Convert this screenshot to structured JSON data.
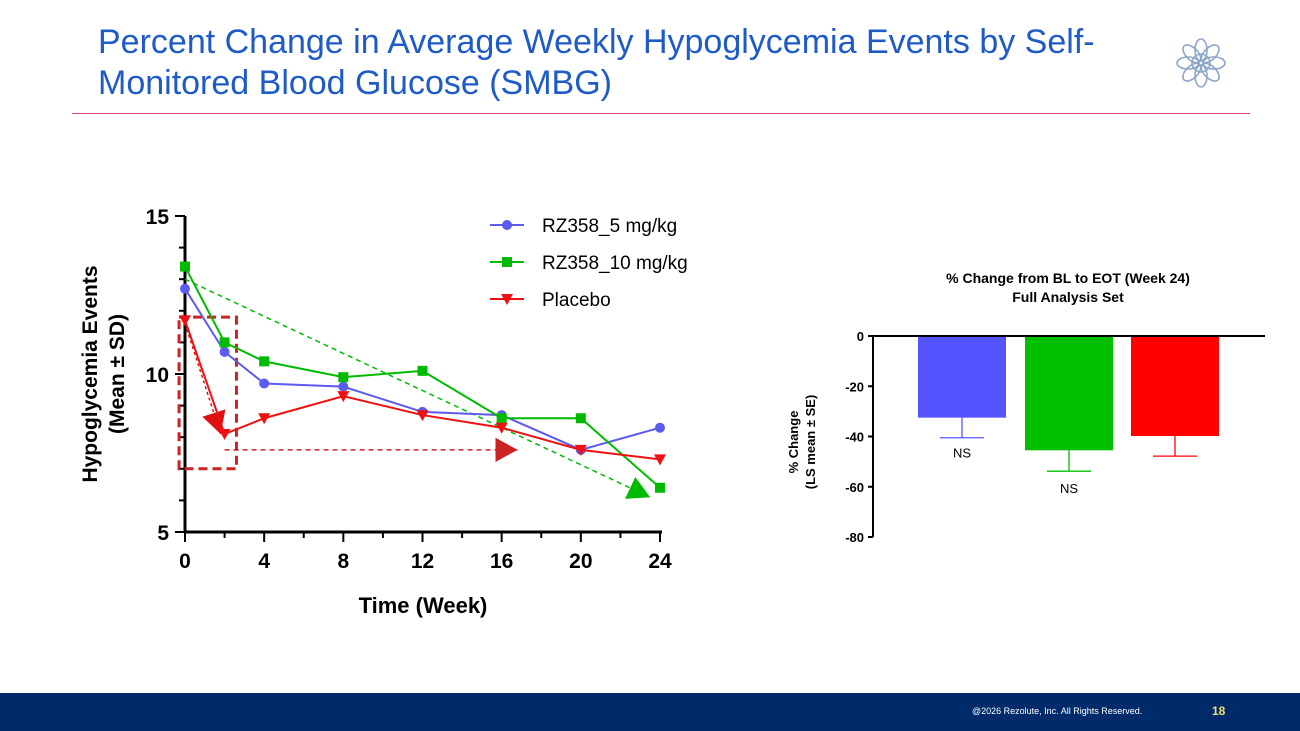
{
  "slide": {
    "title": "Percent Change in Average Weekly Hypoglycemia Events by Self-Monitored Blood Glucose (SMBG)",
    "logo_icon": "rezolute-flower-logo",
    "copyright": "@2026 Rezolute, Inc. All Rights Reserved.",
    "page_number": "18",
    "colors": {
      "title": "#1f5bc6",
      "rule": "#e0407a",
      "footer": "#002b6b",
      "page_number": "#f3e06b"
    }
  },
  "chart_data": [
    {
      "type": "line",
      "title": "",
      "xlabel": "Time (Week)",
      "ylabel": "Hypoglycemia Events (Mean ± SD)",
      "ylabel_lines": [
        "Hypoglycemia Events",
        "(Mean ± SD)"
      ],
      "x": [
        0,
        2,
        4,
        8,
        12,
        16,
        20,
        24
      ],
      "xlim": [
        0,
        24
      ],
      "ylim": [
        5,
        15
      ],
      "xticks": [
        "0",
        "4",
        "8",
        "12",
        "16",
        "20",
        "24"
      ],
      "xtick_values": [
        0,
        4,
        8,
        12,
        16,
        20,
        24
      ],
      "yticks": [
        "5",
        "10",
        "15"
      ],
      "ytick_values": [
        5,
        10,
        15
      ],
      "legend_position": "top-right",
      "series": [
        {
          "name": "RZ358_5 mg/kg",
          "marker": "circle",
          "color": "#5b5bef",
          "values": [
            12.7,
            10.7,
            9.7,
            9.6,
            8.8,
            8.7,
            7.6,
            8.3
          ]
        },
        {
          "name": "RZ358_10 mg/kg",
          "marker": "square",
          "color": "#00bb00",
          "values": [
            13.4,
            11.0,
            10.4,
            9.9,
            10.1,
            8.6,
            8.6,
            6.4
          ]
        },
        {
          "name": "Placebo",
          "marker": "triangle-down",
          "color": "#ee1111",
          "values": [
            11.7,
            8.1,
            8.6,
            9.3,
            8.7,
            8.3,
            7.6,
            7.3
          ]
        }
      ],
      "annotations": [
        {
          "kind": "dashed-trend-arrow",
          "color": "#00bb00",
          "from": [
            0,
            13.0
          ],
          "to": [
            23.5,
            6.1
          ]
        },
        {
          "kind": "dotted-arrow",
          "color": "#dd1111",
          "from": [
            0,
            11.6
          ],
          "to": [
            1.8,
            8.1
          ]
        },
        {
          "kind": "dashed-horizontal-arrow",
          "color": "#cc2222",
          "from": [
            2,
            7.6
          ],
          "to": [
            16.8,
            7.6
          ]
        },
        {
          "kind": "dashed-box",
          "color": "#cc2222",
          "x": [
            -0.3,
            2.6
          ],
          "y": [
            7.0,
            11.8
          ]
        }
      ]
    },
    {
      "type": "bar",
      "title": "% Change from BL to EOT (Week 24)",
      "subtitle": "Full Analysis Set",
      "ylabel": "% Change (LS mean ± SE)",
      "ylabel_lines": [
        "% Change",
        "(LS mean ± SE)"
      ],
      "ylim": [
        -80,
        0
      ],
      "yticks": [
        "0",
        "-20",
        "-40",
        "-60",
        "-80"
      ],
      "ytick_values": [
        0,
        -20,
        -40,
        -60,
        -80
      ],
      "categories": [
        "RZ358_5 mg/kg",
        "RZ358_10 mg/kg",
        "Placebo"
      ],
      "values": [
        -32.5,
        -45.5,
        -39.8
      ],
      "errors": [
        8.0,
        8.3,
        8.0
      ],
      "colors": [
        "#5555ff",
        "#00c000",
        "#ff0000"
      ],
      "labels": [
        "NS",
        "NS",
        ""
      ]
    }
  ]
}
